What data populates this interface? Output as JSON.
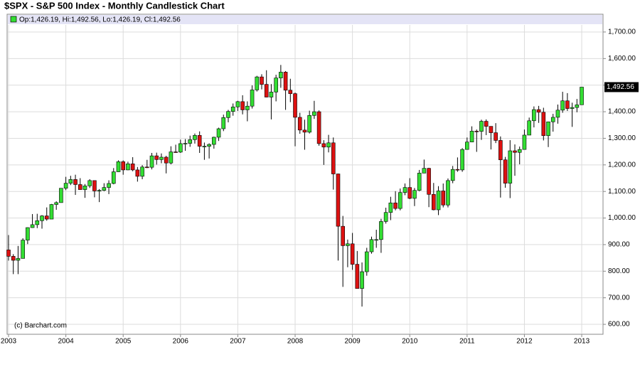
{
  "chart_data": {
    "type": "candlestick",
    "title": "$SPX - S&P 500 Index - Monthly Candlestick Chart",
    "info": "Op:1,426.19, Hi:1,492.56, Lo:1,426.19, Cl:1,492.56",
    "credit": "(c) Barchart.com",
    "last_price_label": "1,492.56",
    "up_color": "#33dd33",
    "down_color": "#dd1111",
    "grid": true,
    "categories": [
      "2003",
      null,
      null,
      null,
      null,
      null,
      null,
      null,
      null,
      null,
      null,
      null,
      "2004",
      null,
      null,
      null,
      null,
      null,
      null,
      null,
      null,
      null,
      null,
      null,
      "2005",
      null,
      null,
      null,
      null,
      null,
      null,
      null,
      null,
      null,
      null,
      null,
      "2006",
      null,
      null,
      null,
      null,
      null,
      null,
      null,
      null,
      null,
      null,
      null,
      "2007",
      null,
      null,
      null,
      null,
      null,
      null,
      null,
      null,
      null,
      null,
      null,
      "2008",
      null,
      null,
      null,
      null,
      null,
      null,
      null,
      null,
      null,
      null,
      null,
      "2009",
      null,
      null,
      null,
      null,
      null,
      null,
      null,
      null,
      null,
      null,
      null,
      "2010",
      null,
      null,
      null,
      null,
      null,
      null,
      null,
      null,
      null,
      null,
      null,
      "2011",
      null,
      null,
      null,
      null,
      null,
      null,
      null,
      null,
      null,
      null,
      null,
      "2012",
      null,
      null,
      null,
      null,
      null,
      null,
      null,
      null,
      null,
      null,
      null,
      "2013"
    ],
    "open": [
      880,
      856,
      841,
      848,
      917,
      964,
      975,
      990,
      1008,
      996,
      1051,
      1058,
      1112,
      1131,
      1145,
      1126,
      1107,
      1121,
      1141,
      1102,
      1104,
      1115,
      1130,
      1174,
      1212,
      1181,
      1204,
      1181,
      1157,
      1192,
      1191,
      1234,
      1220,
      1229,
      1207,
      1249,
      1248,
      1280,
      1281,
      1295,
      1311,
      1270,
      1270,
      1277,
      1304,
      1336,
      1378,
      1401,
      1418,
      1438,
      1407,
      1421,
      1482,
      1531,
      1503,
      1455,
      1474,
      1527,
      1549,
      1481,
      1468,
      1379,
      1331,
      1323,
      1386,
      1400,
      1280,
      1267,
      1283,
      1166,
      969,
      896,
      903,
      826,
      735,
      798,
      873,
      919,
      919,
      987,
      1021,
      1057,
      1036,
      1096,
      1115,
      1074,
      1104,
      1169,
      1187,
      1089,
      1031,
      1102,
      1049,
      1141,
      1183,
      1181,
      1258,
      1286,
      1327,
      1326,
      1364,
      1345,
      1321,
      1292,
      1219,
      1131,
      1253,
      1247,
      1258,
      1312,
      1366,
      1408,
      1398,
      1310,
      1362,
      1379,
      1406,
      1441,
      1412,
      1416,
      1426.19
    ],
    "high": [
      936,
      864,
      895,
      924,
      965,
      1015,
      1016,
      1011,
      1040,
      1053,
      1063,
      1112,
      1155,
      1159,
      1163,
      1150,
      1128,
      1146,
      1141,
      1109,
      1131,
      1142,
      1188,
      1217,
      1217,
      1212,
      1229,
      1192,
      1199,
      1219,
      1245,
      1246,
      1243,
      1234,
      1270,
      1276,
      1295,
      1297,
      1310,
      1318,
      1326,
      1284,
      1281,
      1306,
      1340,
      1389,
      1407,
      1431,
      1441,
      1462,
      1439,
      1499,
      1535,
      1541,
      1556,
      1504,
      1539,
      1576,
      1553,
      1524,
      1472,
      1396,
      1370,
      1404,
      1441,
      1405,
      1293,
      1313,
      1303,
      1167,
      1008,
      919,
      944,
      876,
      833,
      888,
      930,
      956,
      997,
      1039,
      1080,
      1101,
      1111,
      1130,
      1150,
      1113,
      1181,
      1220,
      1189,
      1132,
      1120,
      1130,
      1149,
      1196,
      1228,
      1263,
      1303,
      1345,
      1333,
      1370,
      1371,
      1345,
      1357,
      1307,
      1230,
      1293,
      1277,
      1269,
      1333,
      1378,
      1420,
      1422,
      1415,
      1363,
      1392,
      1427,
      1475,
      1470,
      1434,
      1448,
      1492.56
    ],
    "low": [
      840,
      789,
      789,
      848,
      902,
      963,
      962,
      960,
      990,
      996,
      1031,
      1061,
      1105,
      1124,
      1087,
      1107,
      1076,
      1113,
      1078,
      1060,
      1101,
      1090,
      1127,
      1173,
      1163,
      1180,
      1176,
      1137,
      1146,
      1188,
      1183,
      1201,
      1206,
      1168,
      1202,
      1246,
      1245,
      1253,
      1268,
      1280,
      1245,
      1219,
      1224,
      1261,
      1290,
      1327,
      1360,
      1385,
      1403,
      1390,
      1364,
      1412,
      1476,
      1484,
      1454,
      1371,
      1439,
      1490,
      1407,
      1436,
      1270,
      1317,
      1257,
      1318,
      1373,
      1272,
      1200,
      1247,
      1107,
      840,
      741,
      815,
      805,
      735,
      667,
      783,
      866,
      888,
      869,
      979,
      992,
      1029,
      1029,
      1086,
      1071,
      1045,
      1101,
      1170,
      1041,
      1029,
      1011,
      1040,
      1040,
      1131,
      1174,
      1174,
      1257,
      1289,
      1249,
      1294,
      1312,
      1258,
      1282,
      1077,
      1114,
      1075,
      1159,
      1202,
      1258,
      1312,
      1341,
      1358,
      1292,
      1267,
      1325,
      1355,
      1396,
      1403,
      1343,
      1398,
      1426.19
    ],
    "close": [
      856,
      841,
      848,
      917,
      964,
      975,
      990,
      1008,
      996,
      1051,
      1058,
      1112,
      1131,
      1145,
      1126,
      1107,
      1121,
      1141,
      1102,
      1104,
      1115,
      1130,
      1174,
      1212,
      1181,
      1204,
      1181,
      1157,
      1192,
      1191,
      1234,
      1220,
      1229,
      1207,
      1249,
      1248,
      1280,
      1281,
      1295,
      1311,
      1270,
      1270,
      1277,
      1304,
      1336,
      1378,
      1401,
      1418,
      1438,
      1407,
      1421,
      1482,
      1531,
      1503,
      1455,
      1474,
      1527,
      1549,
      1481,
      1468,
      1379,
      1331,
      1323,
      1386,
      1400,
      1280,
      1267,
      1283,
      1166,
      969,
      896,
      903,
      826,
      735,
      798,
      873,
      919,
      919,
      987,
      1021,
      1057,
      1036,
      1096,
      1115,
      1074,
      1104,
      1169,
      1187,
      1089,
      1031,
      1102,
      1049,
      1141,
      1183,
      1181,
      1258,
      1286,
      1327,
      1326,
      1364,
      1345,
      1321,
      1292,
      1219,
      1131,
      1253,
      1247,
      1258,
      1312,
      1366,
      1408,
      1398,
      1310,
      1362,
      1379,
      1406,
      1441,
      1412,
      1416,
      1426,
      1492.56
    ],
    "ylim": [
      568,
      1724
    ],
    "yticks": [
      {
        "value": 600,
        "label": "600.00"
      },
      {
        "value": 700,
        "label": "700.00"
      },
      {
        "value": 800,
        "label": "800.00"
      },
      {
        "value": 900,
        "label": "900.00"
      },
      {
        "value": 1000,
        "label": "1,000.00"
      },
      {
        "value": 1100,
        "label": "1,100.00"
      },
      {
        "value": 1200,
        "label": "1,200.00"
      },
      {
        "value": 1300,
        "label": "1,300.00"
      },
      {
        "value": 1400,
        "label": "1,400.00"
      },
      {
        "value": 1500,
        "label": "1,500.00"
      },
      {
        "value": 1600,
        "label": "1,600.00"
      },
      {
        "value": 1700,
        "label": "1,700.00"
      }
    ]
  }
}
